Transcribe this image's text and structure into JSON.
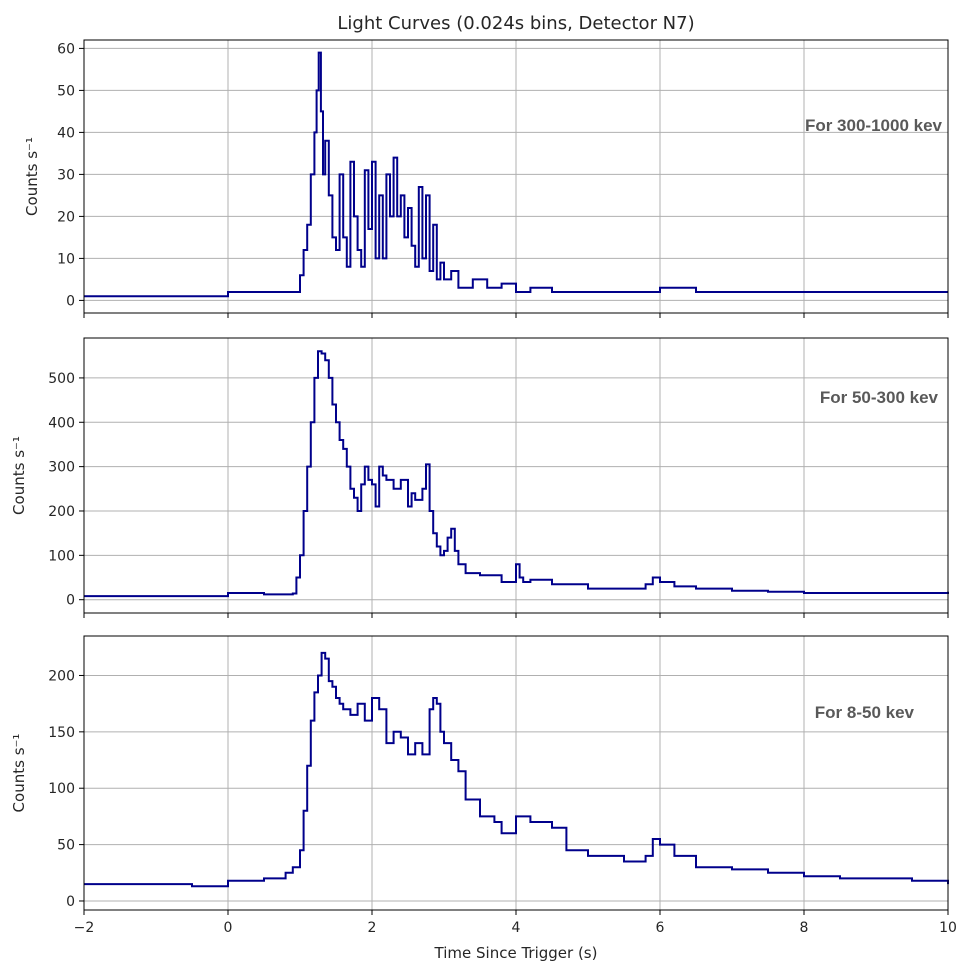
{
  "figure": {
    "title": "Light Curves (0.024s bins, Detector N7)",
    "xlabel": "Time Since Trigger (s)",
    "line_color": "#00008b",
    "grid_color": "#b0b0b0"
  },
  "chart_data": [
    {
      "type": "line",
      "ylabel": "Counts s⁻¹",
      "annotation": "For 300-1000 kev",
      "xlim": [
        -2,
        10
      ],
      "ylim": [
        -3,
        62
      ],
      "x_ticks": [
        -2,
        0,
        2,
        4,
        6,
        8,
        10
      ],
      "y_ticks": [
        0,
        10,
        20,
        30,
        40,
        50,
        60
      ],
      "grid": true,
      "series": [
        {
          "x": [
            -2.0,
            -1.0,
            0.0,
            0.6,
            0.95,
            1.0,
            1.05,
            1.1,
            1.15,
            1.2,
            1.23,
            1.26,
            1.29,
            1.32,
            1.35,
            1.4,
            1.45,
            1.5,
            1.55,
            1.6,
            1.65,
            1.7,
            1.75,
            1.8,
            1.85,
            1.9,
            1.95,
            2.0,
            2.05,
            2.1,
            2.15,
            2.2,
            2.25,
            2.3,
            2.35,
            2.4,
            2.45,
            2.5,
            2.55,
            2.6,
            2.65,
            2.7,
            2.75,
            2.8,
            2.85,
            2.9,
            2.95,
            3.0,
            3.1,
            3.2,
            3.4,
            3.6,
            3.8,
            4.0,
            4.2,
            4.5,
            5.0,
            5.5,
            6.0,
            6.5,
            7.0,
            7.5,
            8.0,
            8.5,
            9.0,
            9.5,
            10.0
          ],
          "y": [
            1,
            1,
            2,
            2,
            2,
            6,
            12,
            18,
            30,
            40,
            50,
            59,
            45,
            30,
            38,
            25,
            15,
            12,
            30,
            15,
            8,
            33,
            20,
            12,
            8,
            31,
            17,
            33,
            10,
            25,
            10,
            30,
            20,
            34,
            20,
            25,
            15,
            22,
            13,
            8,
            27,
            10,
            25,
            7,
            18,
            5,
            9,
            5,
            7,
            3,
            5,
            3,
            4,
            2,
            3,
            2,
            2,
            2,
            3,
            2,
            2,
            2,
            2,
            2,
            2,
            2,
            2
          ]
        }
      ]
    },
    {
      "type": "line",
      "ylabel": "Counts s⁻¹",
      "annotation": "For 50-300 kev",
      "xlim": [
        -2,
        10
      ],
      "ylim": [
        -30,
        590
      ],
      "x_ticks": [
        -2,
        0,
        2,
        4,
        6,
        8,
        10
      ],
      "y_ticks": [
        0,
        100,
        200,
        300,
        400,
        500
      ],
      "grid": true,
      "series": [
        {
          "x": [
            -2.0,
            -1.0,
            -0.5,
            0.0,
            0.5,
            0.9,
            0.95,
            1.0,
            1.05,
            1.1,
            1.15,
            1.2,
            1.25,
            1.3,
            1.35,
            1.4,
            1.45,
            1.5,
            1.55,
            1.6,
            1.65,
            1.7,
            1.75,
            1.8,
            1.85,
            1.9,
            1.95,
            2.0,
            2.05,
            2.1,
            2.15,
            2.2,
            2.3,
            2.4,
            2.5,
            2.55,
            2.6,
            2.7,
            2.75,
            2.8,
            2.85,
            2.9,
            2.95,
            3.0,
            3.05,
            3.1,
            3.15,
            3.2,
            3.3,
            3.5,
            3.8,
            4.0,
            4.05,
            4.1,
            4.2,
            4.5,
            5.0,
            5.5,
            5.8,
            5.9,
            6.0,
            6.2,
            6.5,
            7.0,
            7.5,
            8.0,
            8.5,
            9.0,
            9.5,
            10.0
          ],
          "y": [
            8,
            8,
            8,
            15,
            12,
            14,
            50,
            100,
            200,
            300,
            400,
            500,
            560,
            555,
            540,
            500,
            440,
            400,
            360,
            340,
            300,
            250,
            230,
            200,
            260,
            300,
            270,
            260,
            210,
            300,
            280,
            270,
            250,
            270,
            210,
            240,
            225,
            250,
            305,
            200,
            150,
            120,
            100,
            110,
            140,
            160,
            110,
            80,
            60,
            55,
            40,
            80,
            50,
            40,
            45,
            35,
            25,
            25,
            35,
            50,
            40,
            30,
            25,
            20,
            18,
            15,
            15,
            15,
            15,
            18
          ]
        }
      ]
    },
    {
      "type": "line",
      "ylabel": "Counts s⁻¹",
      "annotation": "For 8-50 kev",
      "xlim": [
        -2,
        10
      ],
      "ylim": [
        -8,
        235
      ],
      "x_ticks": [
        -2,
        0,
        2,
        4,
        6,
        8,
        10
      ],
      "y_ticks": [
        0,
        50,
        100,
        150,
        200
      ],
      "grid": true,
      "series": [
        {
          "x": [
            -2.0,
            -1.0,
            -0.5,
            0.0,
            0.5,
            0.8,
            0.9,
            1.0,
            1.05,
            1.1,
            1.15,
            1.2,
            1.25,
            1.3,
            1.35,
            1.4,
            1.45,
            1.5,
            1.55,
            1.6,
            1.7,
            1.8,
            1.9,
            2.0,
            2.1,
            2.2,
            2.3,
            2.4,
            2.5,
            2.6,
            2.7,
            2.8,
            2.85,
            2.9,
            2.95,
            3.0,
            3.1,
            3.2,
            3.3,
            3.5,
            3.7,
            3.8,
            4.0,
            4.2,
            4.5,
            4.7,
            5.0,
            5.5,
            5.8,
            5.9,
            6.0,
            6.2,
            6.5,
            7.0,
            7.5,
            8.0,
            8.5,
            9.0,
            9.5,
            10.0
          ],
          "y": [
            15,
            15,
            13,
            18,
            20,
            25,
            30,
            45,
            80,
            120,
            160,
            185,
            200,
            220,
            215,
            195,
            190,
            180,
            175,
            170,
            165,
            175,
            160,
            180,
            170,
            140,
            150,
            145,
            130,
            140,
            130,
            170,
            180,
            175,
            150,
            140,
            125,
            115,
            90,
            75,
            70,
            60,
            75,
            70,
            65,
            45,
            40,
            35,
            40,
            55,
            50,
            40,
            30,
            28,
            25,
            22,
            20,
            20,
            18,
            15
          ]
        }
      ]
    }
  ]
}
